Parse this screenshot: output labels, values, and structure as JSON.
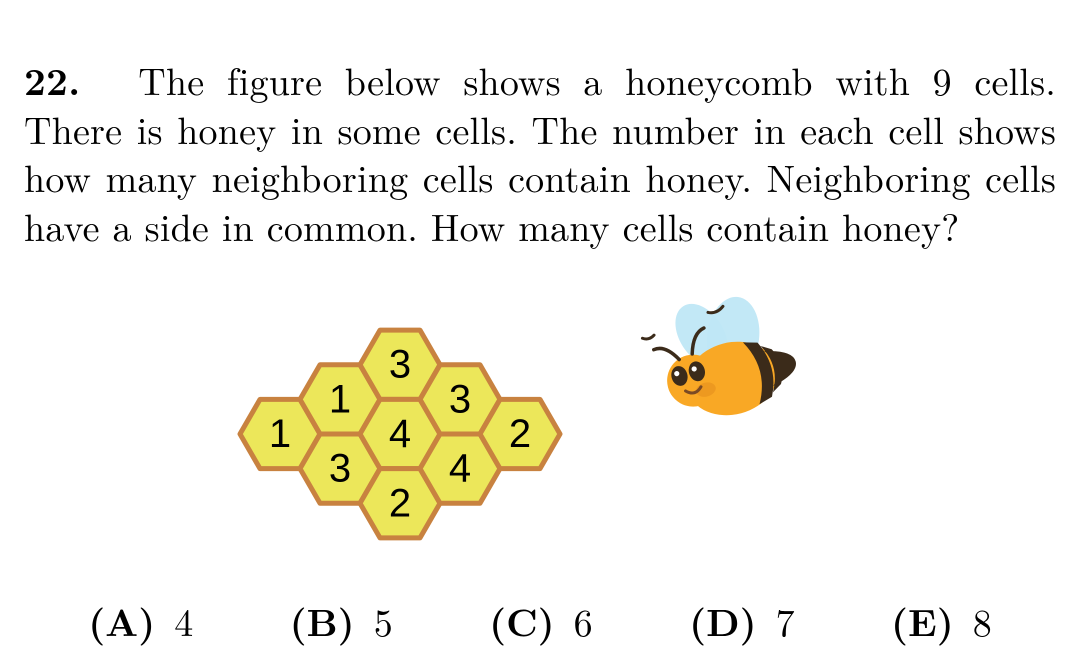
{
  "question": {
    "number": "22.",
    "text": "The figure below shows a honeycomb with 9 cells. There is honey in some cells. The number in each cell shows how many neighboring cells contain honey. Neighboring cells have a side in common. How many cells contain honey?"
  },
  "answers": [
    {
      "label": "(A)",
      "value": "4"
    },
    {
      "label": "(B)",
      "value": "5"
    },
    {
      "label": "(C)",
      "value": "6"
    },
    {
      "label": "(D)",
      "value": "7"
    },
    {
      "label": "(E)",
      "value": "8"
    }
  ],
  "honeycomb": {
    "hex_fill": "#ece75a",
    "hex_stroke": "#c88240",
    "hex_stroke_width": 5,
    "label_color": "#000000",
    "label_fontsize": 40,
    "hex_radius": 40,
    "cells": [
      {
        "col": 0,
        "row": 0,
        "label": "1"
      },
      {
        "col": 1,
        "row": -1,
        "label": "1"
      },
      {
        "col": 1,
        "row": 1,
        "label": "3"
      },
      {
        "col": 2,
        "row": -2,
        "label": "3"
      },
      {
        "col": 2,
        "row": 0,
        "label": "4"
      },
      {
        "col": 2,
        "row": 2,
        "label": "2"
      },
      {
        "col": 3,
        "row": -1,
        "label": "3"
      },
      {
        "col": 3,
        "row": 1,
        "label": "4"
      },
      {
        "col": 4,
        "row": 0,
        "label": "2"
      }
    ]
  },
  "bee": {
    "body_color": "#f9a825",
    "stripe_color": "#3b2b1a",
    "wing_color": "#bfe7f5",
    "eye_color": "#3b2b1a",
    "eye_highlight": "#ffffff",
    "antenna_color": "#3b2b1a",
    "mouth_color": "#7a4a24"
  }
}
